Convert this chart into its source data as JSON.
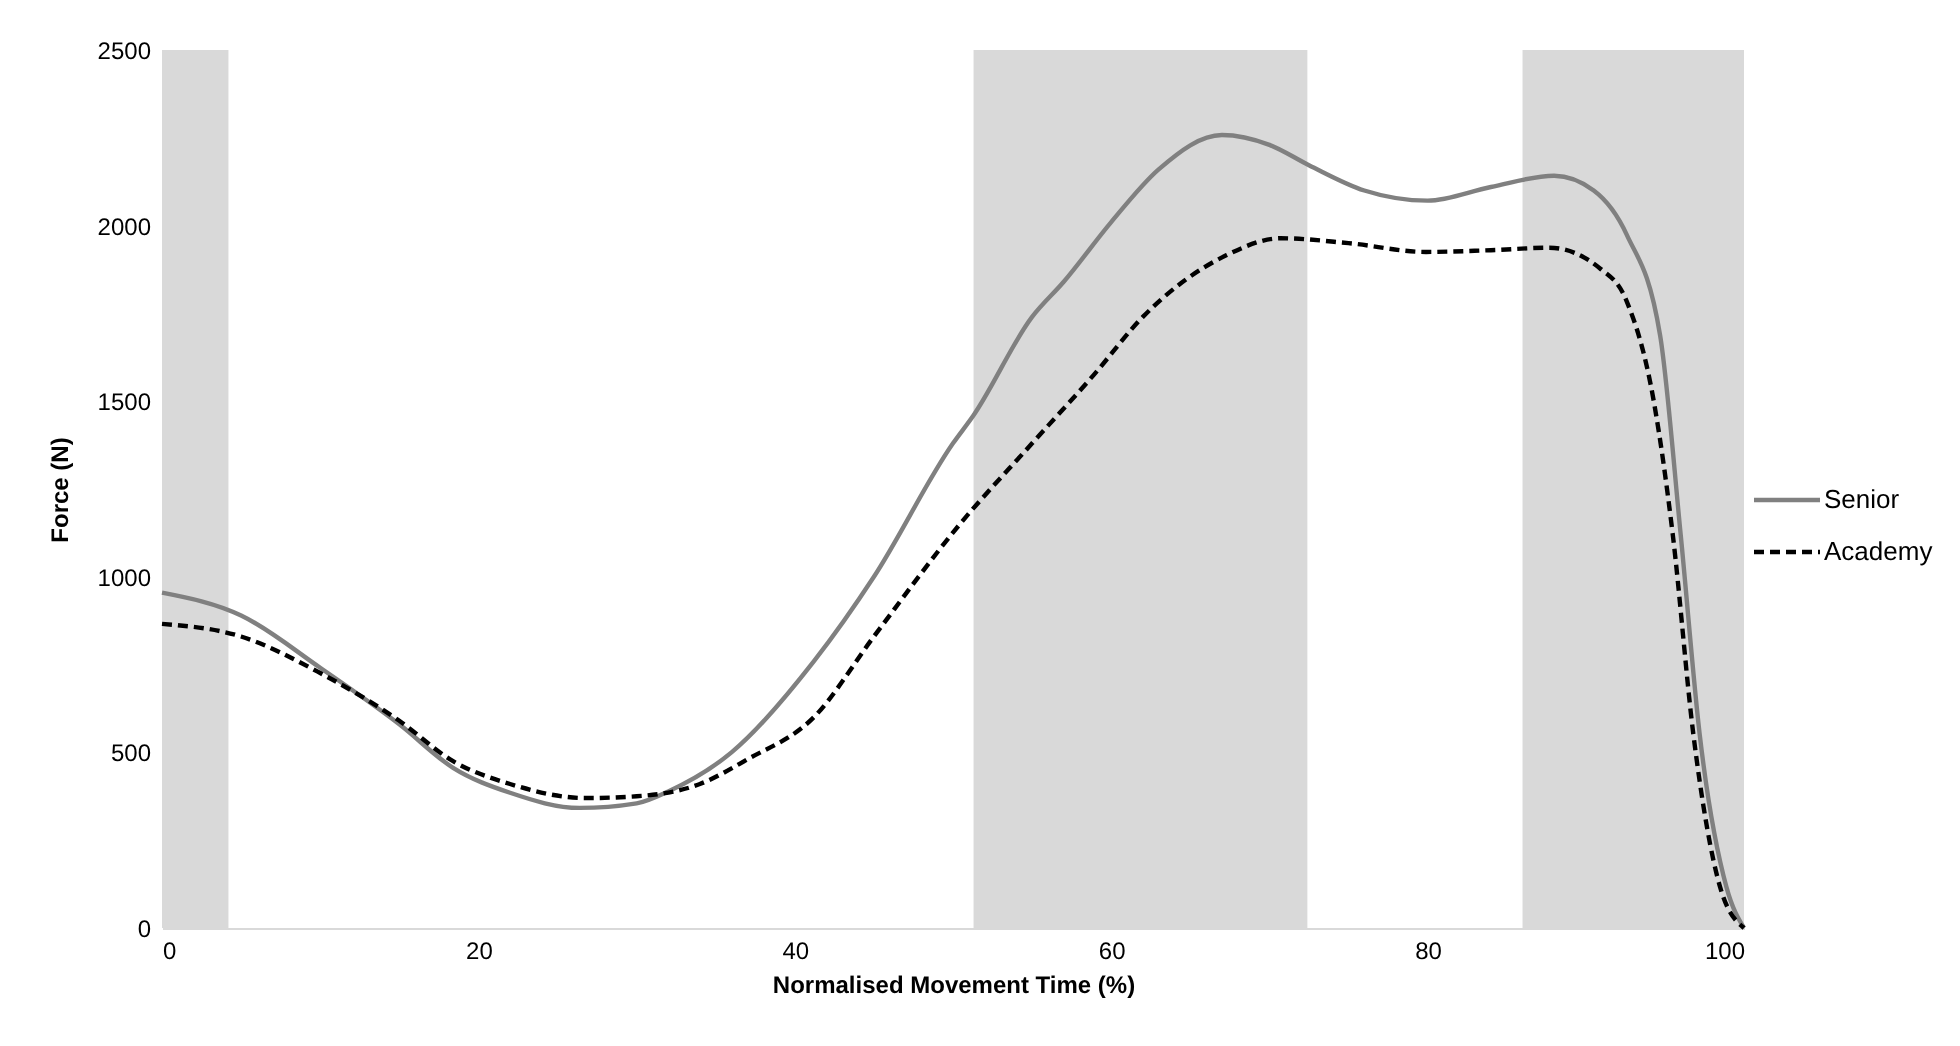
{
  "chart_data": {
    "type": "line",
    "xlabel": "Normalised Movement Time (%)",
    "ylabel": "Force (N)",
    "xlim": [
      0,
      100
    ],
    "ylim": [
      0,
      2500
    ],
    "xticks": [
      0,
      20,
      40,
      60,
      80,
      100
    ],
    "yticks": [
      0,
      500,
      1000,
      1500,
      2000,
      2500
    ],
    "legend": "right",
    "bands": [
      {
        "axis": "x",
        "from": 0,
        "to": 4.2,
        "color": "#d9d9d9"
      },
      {
        "axis": "x",
        "from": 51.3,
        "to": 72.4,
        "color": "#d9d9d9"
      },
      {
        "axis": "x",
        "from": 86,
        "to": 100,
        "color": "#d9d9d9"
      }
    ],
    "series": [
      {
        "name": "Senior",
        "color": "#808080",
        "line_style": "solid",
        "x": [
          0,
          5,
          10,
          15,
          18.4,
          22,
          26.4,
          30,
          32,
          36,
          41.2,
          45,
          50,
          51.3,
          55,
          57,
          60,
          63,
          67,
          70,
          72.5,
          76,
          80,
          84,
          88,
          90.5,
          92.6,
          94.7,
          96,
          97.2,
          98.9,
          100
        ],
        "values": [
          955,
          890,
          741,
          580,
          456,
          385,
          342,
          355,
          389,
          500,
          759,
          1000,
          1380,
          1460,
          1740,
          1840,
          2010,
          2160,
          2258,
          2230,
          2172,
          2100,
          2071,
          2110,
          2142,
          2100,
          1973,
          1687,
          1119,
          551,
          115,
          0
        ]
      },
      {
        "name": "Academy",
        "color": "#000000",
        "line_style": "dashed",
        "x": [
          0,
          5,
          10,
          15,
          18.4,
          22,
          26.8,
          30,
          34,
          37,
          41.2,
          45,
          50.4,
          55,
          58.9,
          62,
          67.3,
          70.7,
          75,
          79.9,
          84,
          87.7,
          90.9,
          92.6,
          94.3,
          95.5,
          96.8,
          98.5,
          100
        ],
        "values": [
          866,
          830,
          726,
          590,
          475,
          410,
          370,
          375,
          410,
          480,
          600,
          830,
          1148,
          1380,
          1575,
          1740,
          1916,
          1964,
          1950,
          1925,
          1930,
          1937,
          1878,
          1783,
          1499,
          1119,
          551,
          115,
          0
        ]
      }
    ]
  }
}
